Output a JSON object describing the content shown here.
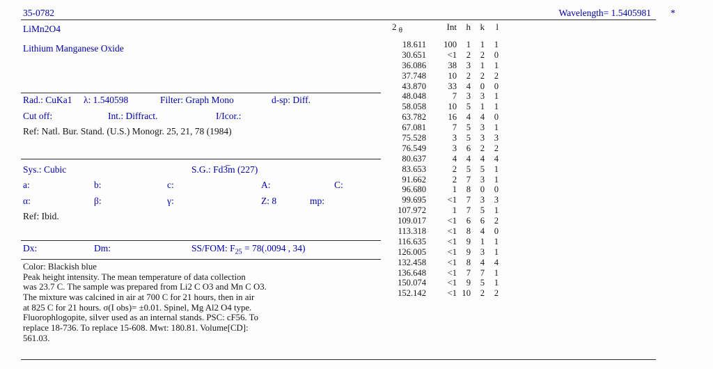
{
  "header": {
    "card_id": "35-0782",
    "wavelength": "Wavelength= 1.5405981",
    "quality_mark": "*"
  },
  "identity": {
    "formula": "LiMn2O4",
    "name": "Lithium Manganese Oxide"
  },
  "radiation": {
    "rad": "Rad.: CuKa1",
    "lambda": "λ: 1.540598",
    "filter": "Filter: Graph Mono",
    "dsp": "d-sp: Diff.",
    "cut_off": "Cut off:",
    "intensity": "Int.: Diffract.",
    "i_icor": "I/Icor.:",
    "ref": "Ref:  Natl. Bur. Stand. (U.S.) Monogr. 25, 21, 78 (1984)"
  },
  "lattice": {
    "sys": "Sys.: Cubic",
    "sg": "S.G.: Fd3̅m (227)",
    "a": "a:",
    "b": "b:",
    "c": "c:",
    "A": "A:",
    "C": "C:",
    "alpha": "α:",
    "beta": "β:",
    "gamma": "γ:",
    "z": "Z: 8",
    "mp": "mp:",
    "ref": "Ref: Ibid."
  },
  "density": {
    "dx": "Dx:",
    "dm": "Dm:",
    "ssfom_prefix": "SS/FOM: F",
    "ssfom_sub": "25",
    "ssfom_value": " = 78(.0094 , 34)"
  },
  "comments": {
    "lines": [
      "Color: Blackish blue",
      "Peak height intensity. The mean temperature of data collection",
      "was 23.7 C. The sample was prepared from Li2 C O3 and Mn C O3.",
      "The mixture was calcined in air at 700 C for 21 hours, then in air",
      "at 825 C for 21 hours. σ(I obs)= ±0.01. Spinel, Mg Al2 O4 type.",
      "Fluorophlogopite, silver used as an internal stands. PSC: cF56. To",
      "replace 18-736. To replace 15-608. Mwt: 180.81. Volume[CD]:",
      "561.03."
    ]
  },
  "table": {
    "headers": {
      "two_theta": "2",
      "theta": "θ",
      "int": "Int",
      "h": "h",
      "k": "k",
      "l": "l"
    },
    "rows": [
      [
        "18.611",
        "100",
        "1",
        "1",
        "1"
      ],
      [
        "30.651",
        "<1",
        "2",
        "2",
        "0"
      ],
      [
        "36.086",
        "38",
        "3",
        "1",
        "1"
      ],
      [
        "37.748",
        "10",
        "2",
        "2",
        "2"
      ],
      [
        "43.870",
        "33",
        "4",
        "0",
        "0"
      ],
      [
        "48.048",
        "7",
        "3",
        "3",
        "1"
      ],
      [
        "58.058",
        "10",
        "5",
        "1",
        "1"
      ],
      [
        "63.782",
        "16",
        "4",
        "4",
        "0"
      ],
      [
        "67.081",
        "7",
        "5",
        "3",
        "1"
      ],
      [
        "75.528",
        "3",
        "5",
        "3",
        "3"
      ],
      [
        "76.549",
        "3",
        "6",
        "2",
        "2"
      ],
      [
        "80.637",
        "4",
        "4",
        "4",
        "4"
      ],
      [
        "83.653",
        "2",
        "5",
        "5",
        "1"
      ],
      [
        "91.662",
        "2",
        "7",
        "3",
        "1"
      ],
      [
        "96.680",
        "1",
        "8",
        "0",
        "0"
      ],
      [
        "99.695",
        "<1",
        "7",
        "3",
        "3"
      ],
      [
        "107.972",
        "1",
        "7",
        "5",
        "1"
      ],
      [
        "109.017",
        "<1",
        "6",
        "6",
        "2"
      ],
      [
        "113.318",
        "<1",
        "8",
        "4",
        "0"
      ],
      [
        "116.635",
        "<1",
        "9",
        "1",
        "1"
      ],
      [
        "126.005",
        "<1",
        "9",
        "3",
        "1"
      ],
      [
        "132.458",
        "<1",
        "8",
        "4",
        "4"
      ],
      [
        "136.648",
        "<1",
        "7",
        "7",
        "1"
      ],
      [
        "150.074",
        "<1",
        "9",
        "5",
        "1"
      ],
      [
        "152.142",
        "<1",
        "10",
        "2",
        "2"
      ]
    ]
  },
  "colors": {
    "accent_blue": "#0000a8",
    "text_black": "#161616"
  }
}
